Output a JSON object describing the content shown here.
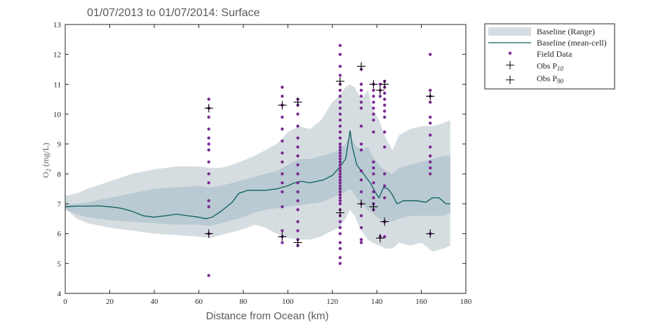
{
  "chart_data": {
    "type": "scatter",
    "title": "01/07/2013 to 01/07/2014: Surface",
    "xlabel": "Distance from Ocean (km)",
    "ylabel": {
      "main": "O",
      "sub": "2",
      "unit": " (mg/L)"
    },
    "xlim": [
      0,
      180
    ],
    "ylim": [
      4,
      13
    ],
    "xticks": [
      0,
      20,
      40,
      60,
      80,
      100,
      120,
      140,
      160,
      180
    ],
    "yticks": [
      4,
      5,
      6,
      7,
      8,
      9,
      10,
      11,
      12,
      13
    ],
    "grid": false,
    "legend_position": "outside-top-right",
    "legend": [
      {
        "key": "range",
        "label": "Baseline (Range)"
      },
      {
        "key": "mean",
        "label": "Baseline (mean-cell)"
      },
      {
        "key": "field",
        "label": "Field Data"
      },
      {
        "key": "p10",
        "label": "Obs P",
        "sub": "10"
      },
      {
        "key": "p90",
        "label": "Obs P",
        "sub": "90"
      }
    ],
    "colors": {
      "range_outer": "#d6dde1",
      "range_inner": "#b9cad2",
      "mean_line": "#0b5f60",
      "field": "#7b2a92",
      "obs": "#000000",
      "axis": "#262626"
    },
    "baseline_range": {
      "x": [
        0,
        5,
        10,
        20,
        30,
        40,
        50,
        60,
        65,
        70,
        75,
        80,
        85,
        90,
        95,
        100,
        105,
        110,
        115,
        120,
        123,
        126,
        128,
        130,
        133,
        136,
        138,
        141,
        144,
        147,
        150,
        155,
        160,
        165,
        170,
        173
      ],
      "upper": [
        7.25,
        7.35,
        7.5,
        7.75,
        8.0,
        8.15,
        8.25,
        8.25,
        8.2,
        8.2,
        8.3,
        8.45,
        8.6,
        8.8,
        9.0,
        9.4,
        9.6,
        9.5,
        9.8,
        10.4,
        10.6,
        10.9,
        11.0,
        10.9,
        10.5,
        10.8,
        10.2,
        9.8,
        9.2,
        8.8,
        9.3,
        9.5,
        9.6,
        9.6,
        9.7,
        9.8
      ],
      "lower": [
        6.85,
        6.5,
        6.35,
        6.2,
        6.1,
        6.0,
        5.95,
        5.9,
        5.85,
        5.95,
        6.05,
        6.15,
        6.3,
        6.2,
        6.0,
        5.85,
        5.8,
        5.8,
        5.9,
        6.1,
        6.2,
        6.5,
        6.8,
        6.6,
        6.1,
        5.8,
        5.7,
        5.6,
        5.5,
        5.5,
        5.7,
        5.6,
        5.7,
        5.4,
        5.5,
        5.6
      ]
    },
    "baseline_mid": {
      "x": [
        0,
        5,
        10,
        20,
        30,
        40,
        50,
        60,
        65,
        70,
        75,
        80,
        85,
        90,
        95,
        100,
        105,
        110,
        115,
        120,
        123,
        126,
        128,
        130,
        133,
        136,
        138,
        141,
        144,
        147,
        150,
        155,
        160,
        165,
        170,
        173
      ],
      "upper": [
        7.0,
        7.0,
        7.05,
        7.2,
        7.35,
        7.5,
        7.55,
        7.6,
        7.55,
        7.6,
        7.7,
        7.8,
        7.9,
        8.0,
        8.1,
        8.3,
        8.5,
        8.5,
        8.6,
        8.7,
        8.8,
        9.0,
        9.3,
        9.0,
        8.8,
        8.9,
        8.6,
        8.3,
        8.1,
        8.0,
        8.2,
        8.3,
        8.4,
        8.5,
        8.6,
        8.6
      ],
      "lower": [
        6.8,
        6.65,
        6.55,
        6.45,
        6.4,
        6.35,
        6.3,
        6.3,
        6.25,
        6.35,
        6.45,
        6.55,
        6.7,
        6.8,
        6.85,
        6.9,
        6.95,
        7.0,
        7.05,
        7.2,
        7.3,
        7.4,
        7.5,
        7.3,
        7.0,
        6.8,
        6.7,
        6.5,
        6.4,
        6.4,
        6.5,
        6.6,
        6.6,
        6.6,
        6.6,
        6.7
      ]
    },
    "baseline_mean": {
      "x": [
        0,
        5,
        10,
        15,
        20,
        25,
        30,
        35,
        40,
        45,
        50,
        55,
        60,
        63,
        66,
        70,
        75,
        78,
        82,
        86,
        90,
        95,
        100,
        103,
        106,
        110,
        113,
        116,
        120,
        123,
        126,
        128,
        129,
        131,
        134,
        137,
        140,
        141,
        143,
        145,
        147,
        149,
        152,
        155,
        158,
        162,
        165,
        168,
        171,
        173
      ],
      "y": [
        6.9,
        6.92,
        6.92,
        6.93,
        6.9,
        6.85,
        6.75,
        6.6,
        6.55,
        6.6,
        6.65,
        6.6,
        6.55,
        6.5,
        6.55,
        6.75,
        7.05,
        7.35,
        7.45,
        7.45,
        7.45,
        7.5,
        7.6,
        7.7,
        7.75,
        7.7,
        7.75,
        7.8,
        7.95,
        8.2,
        8.5,
        9.45,
        8.9,
        8.3,
        8.0,
        7.7,
        7.3,
        7.2,
        7.55,
        7.5,
        7.3,
        7.0,
        7.1,
        7.1,
        7.1,
        7.05,
        7.2,
        7.2,
        7.0,
        7.0
      ]
    },
    "field_data": [
      {
        "x": 64.5,
        "y": [
          4.6,
          6.0,
          6.9,
          7.1,
          7.7,
          8.0,
          8.4,
          8.8,
          9.0,
          9.2,
          9.5,
          9.9,
          10.2,
          10.5
        ]
      },
      {
        "x": 97.5,
        "y": [
          5.7,
          5.9,
          6.1,
          6.9,
          7.4,
          7.7,
          8.0,
          8.4,
          8.7,
          9.1,
          9.5,
          9.9,
          10.3,
          10.6,
          10.9
        ]
      },
      {
        "x": 104.5,
        "y": [
          5.6,
          5.8,
          6.1,
          6.4,
          6.8,
          7.1,
          7.4,
          7.7,
          8.0,
          8.3,
          8.6,
          8.9,
          9.2,
          9.6,
          10.0,
          10.3,
          10.5
        ]
      },
      {
        "x": 123.5,
        "y": [
          5.0,
          5.2,
          5.5,
          5.7,
          6.0,
          6.2,
          6.4,
          6.6,
          6.8,
          7.0,
          7.1,
          7.2,
          7.3,
          7.4,
          7.5,
          7.6,
          7.7,
          7.8,
          7.9,
          8.0,
          8.1,
          8.2,
          8.3,
          8.4,
          8.5,
          8.6,
          8.7,
          8.8,
          8.9,
          9.0,
          9.2,
          9.4,
          9.6,
          9.8,
          10.0,
          10.2,
          10.4,
          10.6,
          10.8,
          11.0,
          11.3,
          11.6,
          12.0,
          12.3
        ]
      },
      {
        "x": 133,
        "y": [
          5.7,
          5.8,
          6.2,
          6.6,
          7.0,
          7.4,
          7.8,
          8.1,
          8.8,
          9.0,
          9.6,
          10.2,
          10.4,
          10.6,
          10.8,
          11.0,
          11.5
        ]
      },
      {
        "x": 138.5,
        "y": [
          6.8,
          7.0,
          7.2,
          7.4,
          7.7,
          8.0,
          8.2,
          8.4,
          9.4,
          9.8,
          10.0,
          10.2,
          10.4,
          10.6,
          10.8,
          11.0
        ]
      },
      {
        "x": 141.5,
        "y": [
          5.9,
          10.6,
          10.8,
          11.0
        ]
      },
      {
        "x": 143.5,
        "y": [
          5.9,
          6.4,
          7.2,
          7.6,
          8.0,
          8.9,
          9.4,
          9.9,
          10.1,
          10.3,
          10.5,
          10.7,
          10.9,
          11.1
        ]
      },
      {
        "x": 164,
        "y": [
          6.0,
          8.0,
          8.2,
          8.4,
          8.6,
          8.9,
          9.3,
          9.7,
          9.9,
          10.4,
          10.6,
          10.8,
          12.0
        ]
      }
    ],
    "obs_p10": [
      {
        "x": 64.5,
        "y": 6.0
      },
      {
        "x": 97.5,
        "y": 5.9
      },
      {
        "x": 104.5,
        "y": 5.7
      },
      {
        "x": 123.5,
        "y": 6.7
      },
      {
        "x": 133,
        "y": 7.0
      },
      {
        "x": 138.5,
        "y": 6.9
      },
      {
        "x": 141.5,
        "y": 5.85
      },
      {
        "x": 143.5,
        "y": 6.4
      },
      {
        "x": 164,
        "y": 6.0
      }
    ],
    "obs_p90": [
      {
        "x": 64.5,
        "y": 10.2
      },
      {
        "x": 97.5,
        "y": 10.3
      },
      {
        "x": 104.5,
        "y": 10.4
      },
      {
        "x": 123.5,
        "y": 11.1
      },
      {
        "x": 133,
        "y": 11.6
      },
      {
        "x": 138.5,
        "y": 11.0
      },
      {
        "x": 141.5,
        "y": 10.8
      },
      {
        "x": 143.5,
        "y": 11.0
      },
      {
        "x": 164,
        "y": 10.6
      }
    ]
  }
}
